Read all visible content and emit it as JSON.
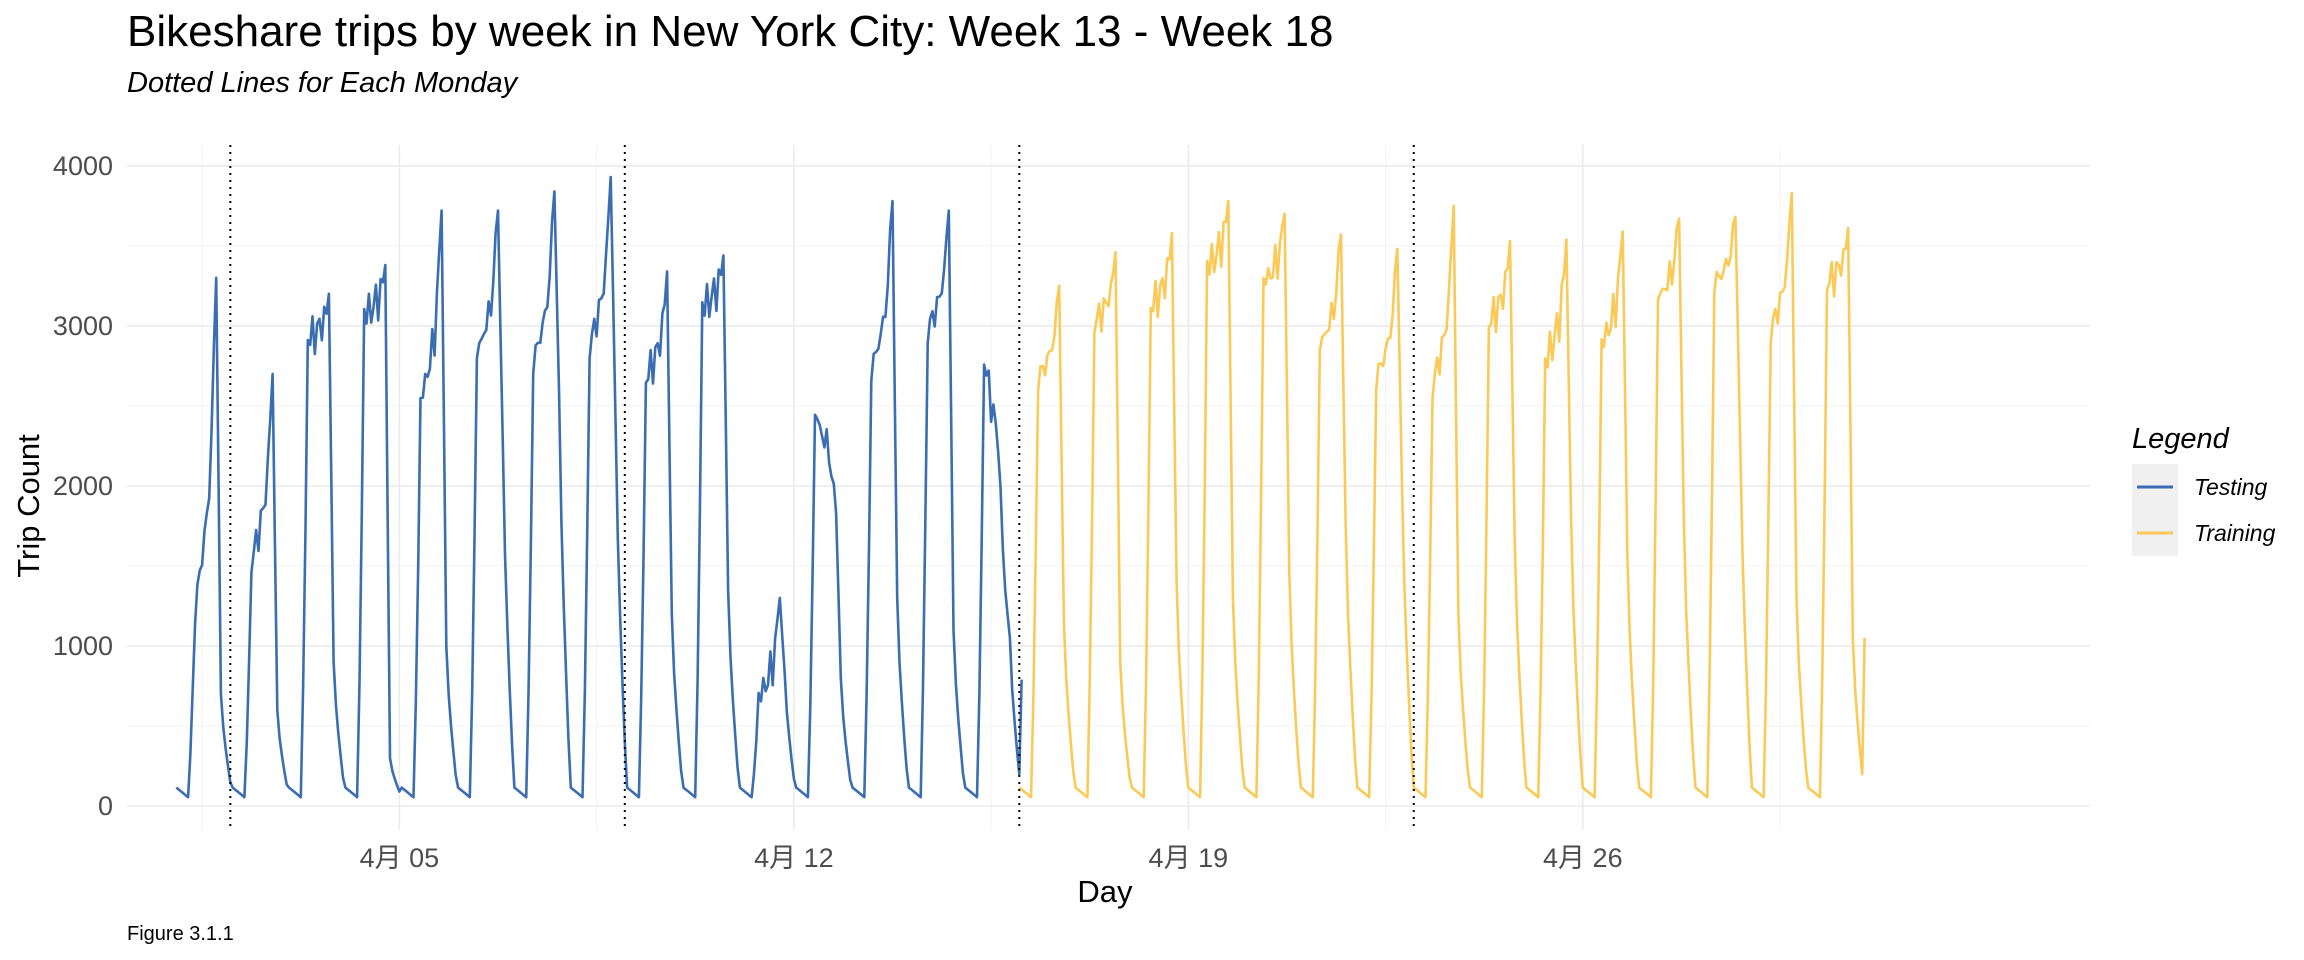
{
  "chart_data": {
    "type": "line",
    "title": "Bikeshare trips by week in New York City: Week 13 - Week 18",
    "subtitle": "Dotted Lines for Each Monday",
    "xlabel": "Day",
    "ylabel": "Trip Count",
    "caption": "Figure 3.1.1",
    "xlim": [
      "2018-03-31T04:00",
      "2018-05-05T00:00"
    ],
    "ylim": [
      -150,
      4130
    ],
    "x_ticks": [
      {
        "date": "2018-04-05",
        "label": "4月 05"
      },
      {
        "date": "2018-04-12",
        "label": "4月 12"
      },
      {
        "date": "2018-04-19",
        "label": "4月 19"
      },
      {
        "date": "2018-04-26",
        "label": "4月 26"
      }
    ],
    "y_ticks": [
      0,
      1000,
      2000,
      3000,
      4000
    ],
    "mondays": [
      "2018-04-02",
      "2018-04-09",
      "2018-04-16",
      "2018-04-23"
    ],
    "grid": true,
    "legend": {
      "title": "Legend",
      "position": "right",
      "entries": [
        {
          "name": "Testing",
          "color": "#3b6db3"
        },
        {
          "name": "Training",
          "color": "#fbc956"
        }
      ]
    },
    "series": [
      {
        "name": "Testing",
        "color": "#3b6db3",
        "start": "2018-04-01T01:00",
        "interval_hours": 1,
        "peaks": [
          [
            1200,
            3300,
            700
          ],
          [
            1500,
            2700,
            600
          ],
          [
            2900,
            3200,
            900
          ],
          [
            3050,
            3380,
            300
          ],
          [
            2500,
            3720,
            1000
          ],
          [
            2800,
            3720,
            2300
          ],
          [
            2750,
            3840,
            2600
          ],
          [
            2850,
            3930,
            2450
          ],
          [
            2650,
            3340,
            1200
          ],
          [
            3100,
            3440,
            1350
          ],
          [
            650,
            1300,
            850
          ],
          [
            2430,
            1830,
            800
          ],
          [
            2700,
            3780,
            1300
          ],
          [
            2950,
            3720,
            1100
          ],
          [
            2780,
            1350,
            1050
          ]
        ],
        "end": 790
      },
      {
        "name": "Training",
        "color": "#fbc956",
        "start": "2018-04-16T00:00",
        "interval_hours": 1,
        "peaks": [
          [
            2650,
            3250,
            1150
          ],
          [
            3000,
            3460,
            900
          ],
          [
            3100,
            3580,
            1400
          ],
          [
            3350,
            3780,
            1300
          ],
          [
            3250,
            3700,
            1450
          ],
          [
            2850,
            3570,
            1750
          ],
          [
            2650,
            3480,
            2000
          ],
          [
            2600,
            3750,
            1200
          ],
          [
            3000,
            3530,
            1650
          ],
          [
            2750,
            3540,
            1800
          ],
          [
            2860,
            3590,
            1550
          ],
          [
            3150,
            3670,
            1800
          ],
          [
            3250,
            3680,
            2300
          ],
          [
            2950,
            3830,
            1300
          ],
          [
            3250,
            3610,
            1050
          ]
        ],
        "end": 1050
      }
    ]
  }
}
